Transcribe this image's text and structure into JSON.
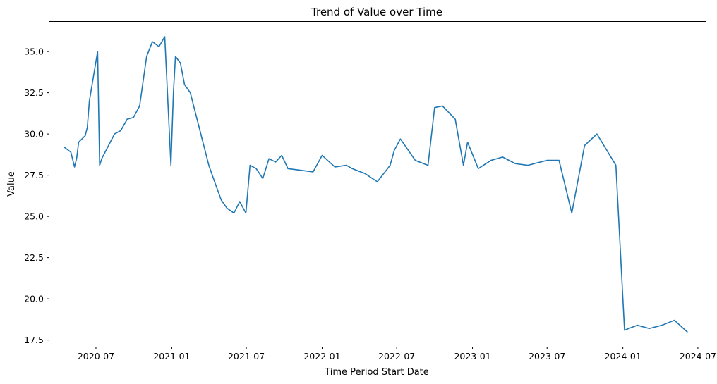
{
  "chart_data": {
    "type": "line",
    "title": "Trend of Value over Time",
    "xlabel": "Time Period Start Date",
    "ylabel": "Value",
    "x_ticks": [
      "2020-07",
      "2021-01",
      "2021-07",
      "2022-01",
      "2022-07",
      "2023-01",
      "2023-07",
      "2024-01",
      "2024-07"
    ],
    "y_ticks": [
      "17.5",
      "20.0",
      "22.5",
      "25.0",
      "27.5",
      "30.0",
      "32.5",
      "35.0"
    ],
    "xlim": [
      "2020-03-10",
      "2024-07-20"
    ],
    "ylim": [
      17.1,
      36.8
    ],
    "grid": false,
    "color": "#1f77b4",
    "series": [
      {
        "x": [
          "2020-04-15",
          "2020-05-01",
          "2020-05-10",
          "2020-05-15",
          "2020-05-20",
          "2020-06-05",
          "2020-06-10",
          "2020-06-15",
          "2020-06-25",
          "2020-07-05",
          "2020-07-10",
          "2020-07-15",
          "2020-08-15",
          "2020-08-30",
          "2020-09-15",
          "2020-09-30",
          "2020-10-15",
          "2020-11-01",
          "2020-11-15",
          "2020-12-01",
          "2020-12-15",
          "2020-12-30",
          "2021-01-05",
          "2021-01-10",
          "2021-01-22",
          "2021-02-01",
          "2021-02-15",
          "2021-04-01",
          "2021-04-15",
          "2021-05-01",
          "2021-05-15",
          "2021-06-01",
          "2021-06-15",
          "2021-06-30",
          "2021-07-10",
          "2021-07-25",
          "2021-08-10",
          "2021-08-25",
          "2021-09-10",
          "2021-09-25",
          "2021-10-10",
          "2021-12-10",
          "2022-01-01",
          "2022-02-01",
          "2022-03-01",
          "2022-03-15",
          "2022-04-15",
          "2022-05-15",
          "2022-06-15",
          "2022-06-25",
          "2022-07-10",
          "2022-08-15",
          "2022-09-15",
          "2022-10-01",
          "2022-10-20",
          "2022-11-20",
          "2022-12-10",
          "2022-12-20",
          "2023-01-15",
          "2023-02-15",
          "2023-03-15",
          "2023-04-15",
          "2023-05-15",
          "2023-07-01",
          "2023-07-30",
          "2023-08-30",
          "2023-09-30",
          "2023-10-30",
          "2023-12-15",
          "2024-01-05",
          "2024-02-05",
          "2024-03-05",
          "2024-04-05",
          "2024-05-05",
          "2024-06-05"
        ],
        "values": [
          29.2,
          28.9,
          28.0,
          28.5,
          29.5,
          29.9,
          30.4,
          32.0,
          33.5,
          35.0,
          28.1,
          28.5,
          30.0,
          30.2,
          30.9,
          31.0,
          31.7,
          34.7,
          35.6,
          35.3,
          35.9,
          28.1,
          32.5,
          34.7,
          34.3,
          33.0,
          32.5,
          28.1,
          27.1,
          26.0,
          25.5,
          25.2,
          25.9,
          25.2,
          28.1,
          27.9,
          27.3,
          28.5,
          28.3,
          28.7,
          27.9,
          27.7,
          28.7,
          28.0,
          28.1,
          27.9,
          27.6,
          27.1,
          28.1,
          29.0,
          29.7,
          28.4,
          28.1,
          31.6,
          31.7,
          30.9,
          28.1,
          29.5,
          27.9,
          28.4,
          28.6,
          28.2,
          28.1,
          28.4,
          28.4,
          25.2,
          29.3,
          30.0,
          28.1,
          18.1,
          18.4,
          18.2,
          18.4,
          18.7,
          18.0
        ]
      }
    ]
  }
}
